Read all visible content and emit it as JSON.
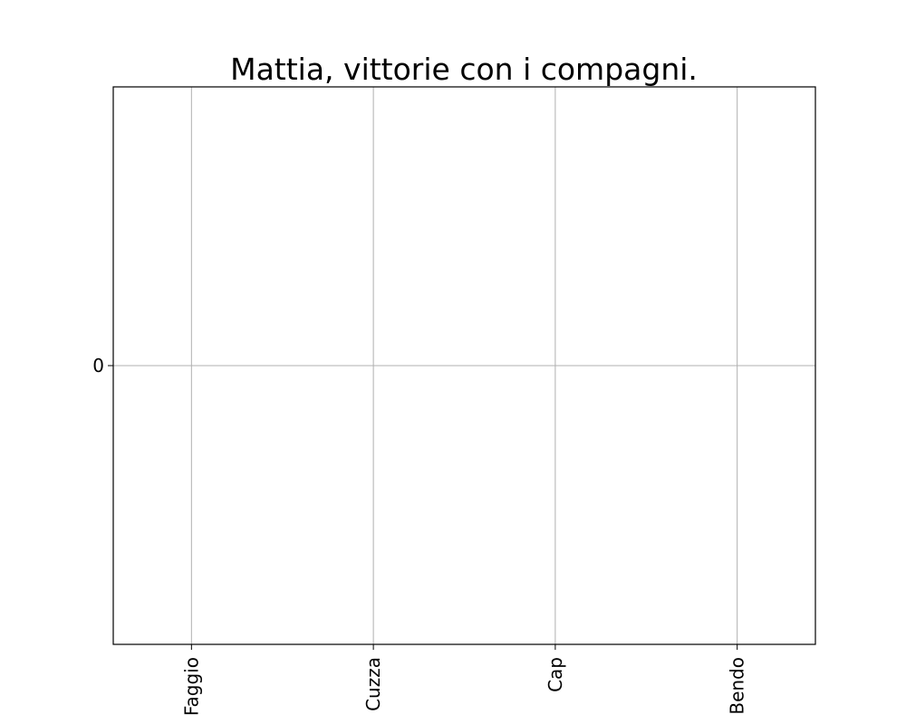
{
  "chart_data": {
    "type": "bar",
    "title": "Mattia, vittorie con i compagni.",
    "categories": [
      "Faggio",
      "Cuzza",
      "Cap",
      "Bendo"
    ],
    "values": [
      0,
      0,
      0,
      0
    ],
    "xlabel": "",
    "ylabel": "",
    "yticks": [
      0
    ],
    "ylim": [
      -0.055,
      0.055
    ],
    "grid": true,
    "legend": "none",
    "xtick_rotation": "vertical"
  }
}
